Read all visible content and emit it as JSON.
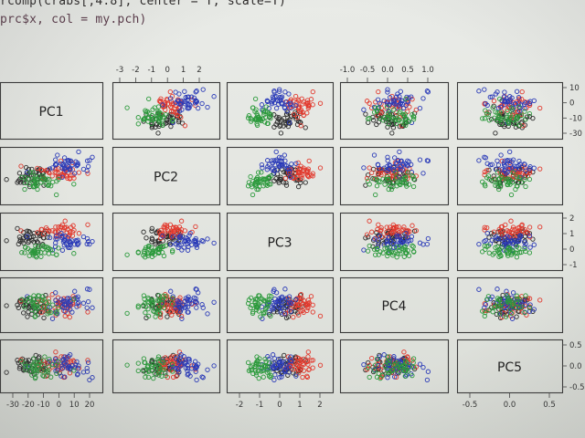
{
  "code": {
    "line1": "rcomp(crabs[,4:8], center = T, scale=T)",
    "line2": "prc$x, col = my.pch)"
  },
  "chart_data": {
    "type": "scatter",
    "plot_type": "scatterplot matrix (pairs)",
    "variables": [
      "PC1",
      "PC2",
      "PC3",
      "PC4",
      "PC5"
    ],
    "groups": [
      {
        "color": "#2b2b2b"
      },
      {
        "color": "#e23a2e"
      },
      {
        "color": "#2b3bb8"
      },
      {
        "color": "#2c9a3c"
      }
    ],
    "axes": {
      "top": [
        {
          "column": 2,
          "ticks": [
            "-3",
            "-2",
            "-1",
            "0",
            "1",
            "2"
          ]
        },
        {
          "column": 4,
          "ticks": [
            "-1.0",
            "-0.5",
            "0.0",
            "0.5",
            "1.0"
          ]
        }
      ],
      "bottom": [
        {
          "column": 1,
          "ticks": [
            "-30",
            "-20",
            "-10",
            "0",
            "10",
            "20"
          ]
        },
        {
          "column": 3,
          "ticks": [
            "-2",
            "-1",
            "0",
            "1",
            "2"
          ]
        },
        {
          "column": 5,
          "ticks": [
            "-0.5",
            "0.0",
            "0.5"
          ]
        }
      ],
      "right": [
        {
          "row": 1,
          "ticks": [
            "10",
            "0",
            "-10",
            "-30"
          ]
        },
        {
          "row": 3,
          "ticks": [
            "2",
            "1",
            "0",
            "-1"
          ]
        },
        {
          "row": 5,
          "ticks": [
            "0.5",
            "0.0",
            "-0.5"
          ]
        }
      ]
    },
    "grid": false,
    "legend": "none"
  }
}
